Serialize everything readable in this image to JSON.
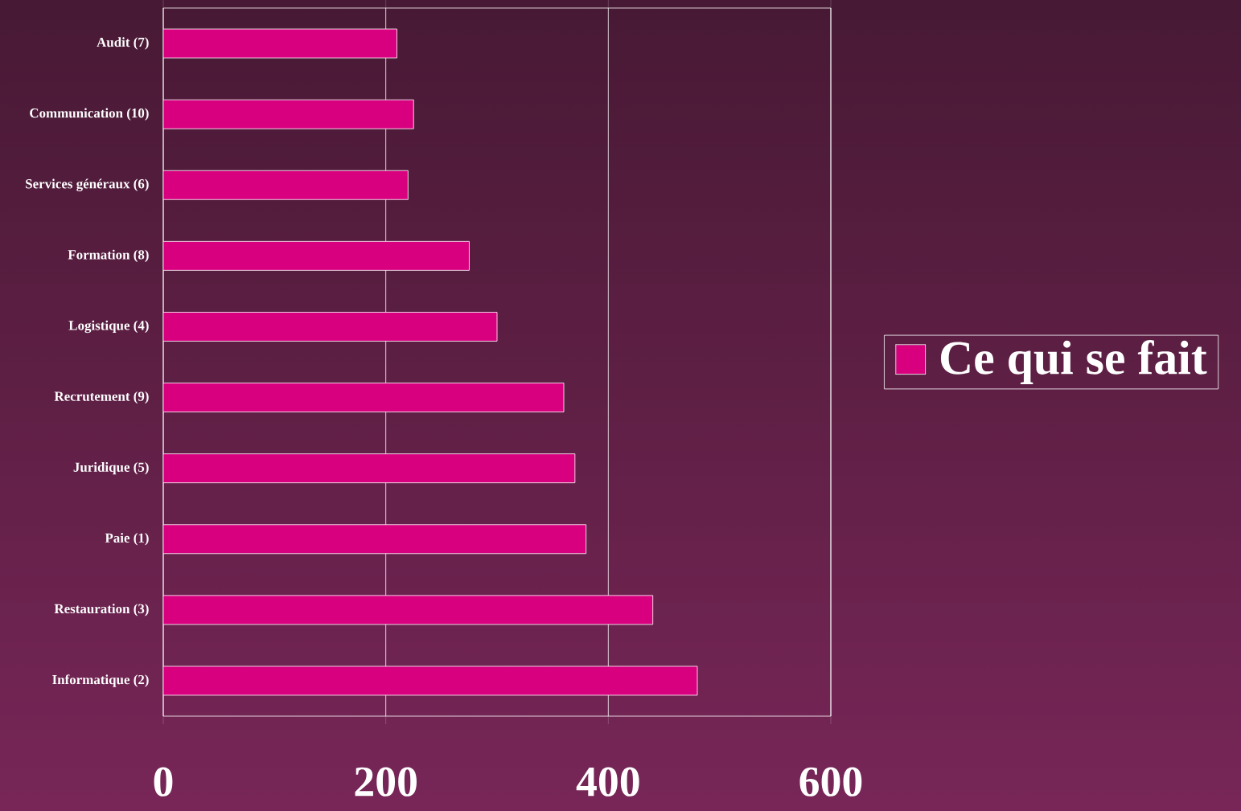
{
  "chart_data": {
    "type": "bar",
    "orientation": "horizontal",
    "categories": [
      "Audit (7)",
      "Communication (10)",
      "Services généraux (6)",
      "Formation (8)",
      "Logistique (4)",
      "Recrutement (9)",
      "Juridique (5)",
      "Paie (1)",
      "Restauration (3)",
      "Informatique (2)"
    ],
    "series": [
      {
        "name": "Ce qui se fait",
        "color": "#d9007f",
        "values": [
          210,
          225,
          220,
          275,
          300,
          360,
          370,
          380,
          440,
          480
        ]
      }
    ],
    "xlim": [
      0,
      600
    ],
    "xticks": [
      0,
      200,
      400,
      600
    ],
    "grid": "x",
    "legend": "right"
  }
}
